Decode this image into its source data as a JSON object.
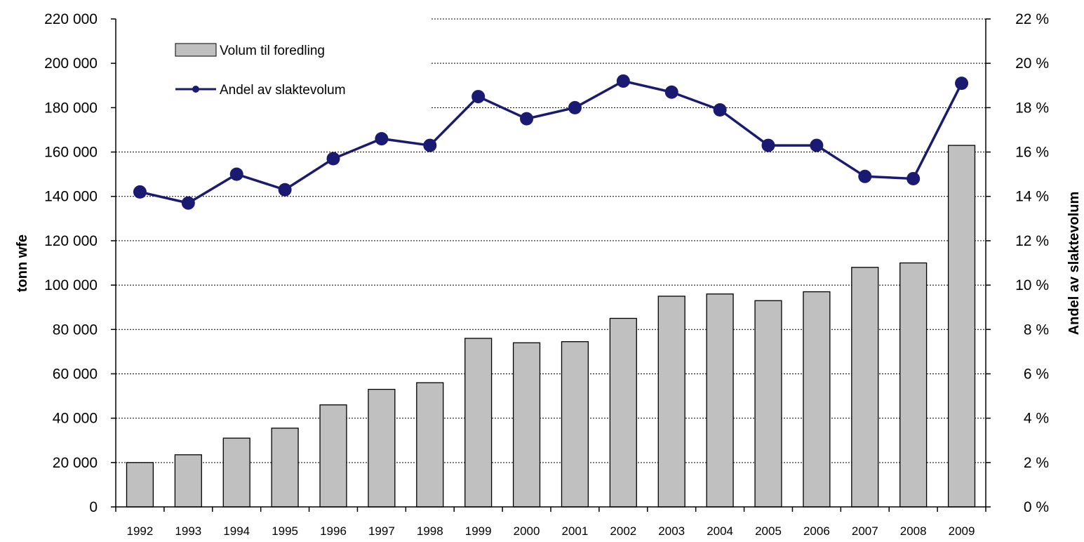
{
  "chart_data": {
    "type": "bar",
    "title": "",
    "categories": [
      "1992",
      "1993",
      "1994",
      "1995",
      "1996",
      "1997",
      "1998",
      "1999",
      "2000",
      "2001",
      "2002",
      "2003",
      "2004",
      "2005",
      "2006",
      "2007",
      "2008",
      "2009"
    ],
    "series": [
      {
        "name": "Volum til foredling",
        "type": "bar",
        "axis": "left",
        "color": "#c0c0c0",
        "values": [
          20000,
          23500,
          31000,
          35500,
          46000,
          53000,
          56000,
          76000,
          74000,
          74500,
          85000,
          95000,
          96000,
          93000,
          97000,
          108000,
          110000,
          163000
        ]
      },
      {
        "name": "Andel av slaktevolum",
        "type": "line",
        "axis": "right",
        "color": "#1a1a72",
        "values": [
          14.2,
          13.7,
          15.0,
          14.3,
          15.7,
          16.6,
          16.3,
          18.5,
          17.5,
          18.0,
          19.2,
          18.7,
          17.9,
          16.3,
          16.3,
          14.9,
          14.8,
          19.1
        ]
      }
    ],
    "ylabel": "tonn wfe",
    "ylabel_right": "Andel av slaktevolum",
    "ylim": [
      0,
      220000
    ],
    "ylim_right": [
      0,
      22
    ],
    "yticks": [
      "0",
      "20 000",
      "40 000",
      "60 000",
      "80 000",
      "100 000",
      "120 000",
      "140 000",
      "160 000",
      "180 000",
      "200 000",
      "220 000"
    ],
    "yticks_right": [
      "0 %",
      "2 %",
      "4 %",
      "6 %",
      "8 %",
      "10 %",
      "12 %",
      "14 %",
      "16 %",
      "18 %",
      "20 %",
      "22 %"
    ],
    "grid": "horizontal dashed",
    "legend": "top-left"
  }
}
